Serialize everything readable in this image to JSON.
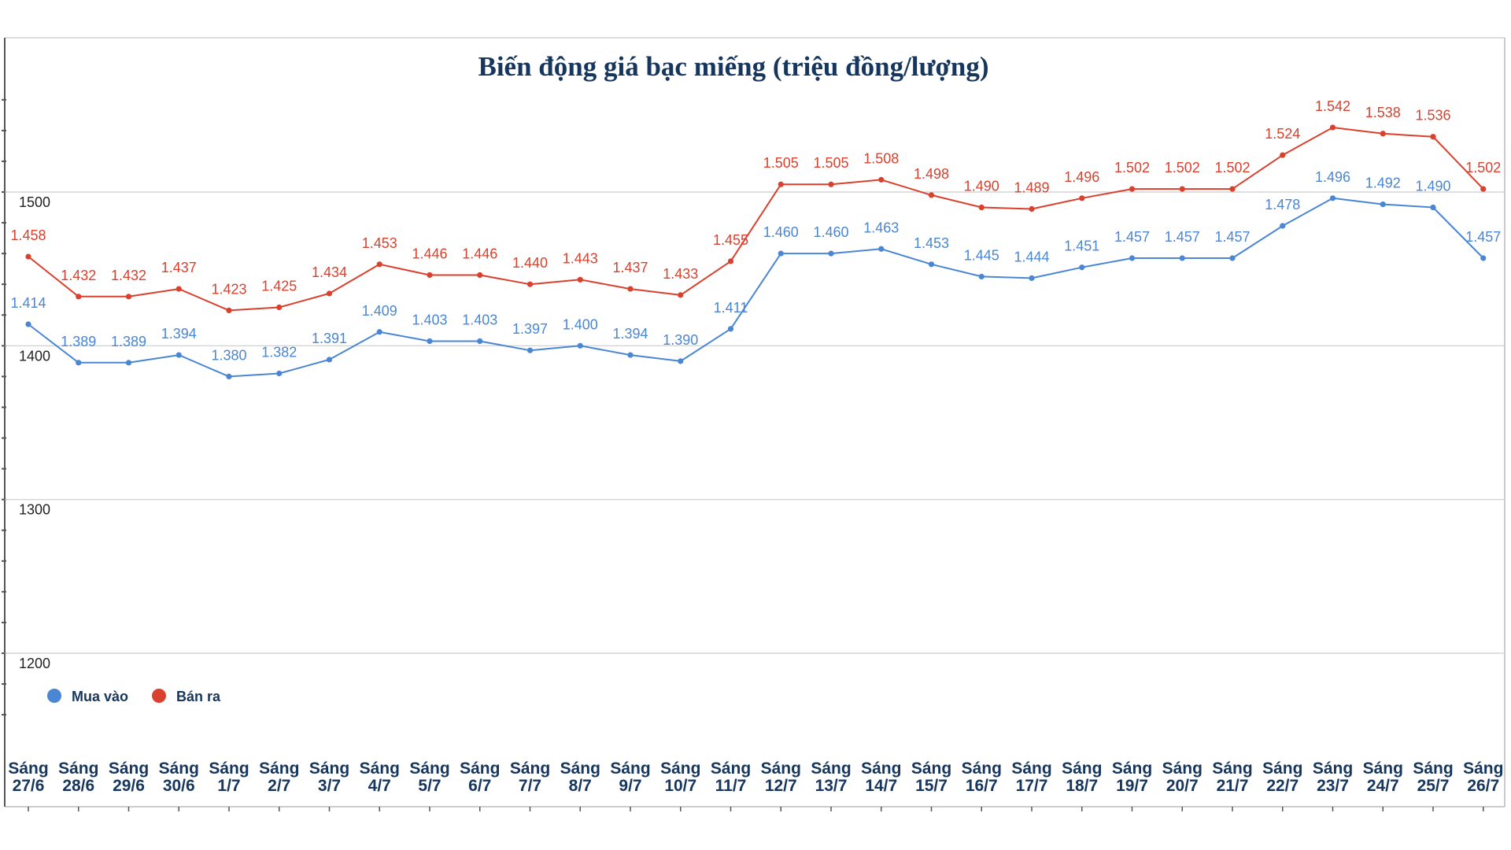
{
  "colors": {
    "buy": "#4a86d4",
    "sell": "#d9412e",
    "title": "#17365d",
    "grid": "#cccccc"
  },
  "chart_data": {
    "type": "line",
    "title": "Biến động giá bạc miếng (triệu đồng/lượng)",
    "xlabel": "",
    "ylabel": "",
    "ylim": [
      1130,
      1560
    ],
    "yticks": [
      1200,
      1300,
      1400,
      1500
    ],
    "grid": true,
    "legend_position": "bottom-left",
    "categories": [
      [
        "Sáng",
        "27/6"
      ],
      [
        "Sáng",
        "28/6"
      ],
      [
        "Sáng",
        "29/6"
      ],
      [
        "Sáng",
        "30/6"
      ],
      [
        "Sáng",
        "1/7"
      ],
      [
        "Sáng",
        "2/7"
      ],
      [
        "Sáng",
        "3/7"
      ],
      [
        "Sáng",
        "4/7"
      ],
      [
        "Sáng",
        "5/7"
      ],
      [
        "Sáng",
        "6/7"
      ],
      [
        "Sáng",
        "7/7"
      ],
      [
        "Sáng",
        "8/7"
      ],
      [
        "Sáng",
        "9/7"
      ],
      [
        "Sáng",
        "10/7"
      ],
      [
        "Sáng",
        "11/7"
      ],
      [
        "Sáng",
        "12/7"
      ],
      [
        "Sáng",
        "13/7"
      ],
      [
        "Sáng",
        "14/7"
      ],
      [
        "Sáng",
        "15/7"
      ],
      [
        "Sáng",
        "16/7"
      ],
      [
        "Sáng",
        "17/7"
      ],
      [
        "Sáng",
        "18/7"
      ],
      [
        "Sáng",
        "19/7"
      ],
      [
        "Sáng",
        "20/7"
      ],
      [
        "Sáng",
        "21/7"
      ],
      [
        "Sáng",
        "22/7"
      ],
      [
        "Sáng",
        "23/7"
      ],
      [
        "Sáng",
        "24/7"
      ],
      [
        "Sáng",
        "25/7"
      ],
      [
        "Sáng",
        "26/7"
      ]
    ],
    "series": [
      {
        "name": "Mua vào",
        "color": "#4a86d4",
        "values": [
          1414,
          1389,
          1389,
          1394,
          1380,
          1382,
          1391,
          1409,
          1403,
          1403,
          1397,
          1400,
          1394,
          1390,
          1411,
          1460,
          1460,
          1463,
          1453,
          1445,
          1444,
          1451,
          1457,
          1457,
          1457,
          1478,
          1496,
          1492,
          1490,
          1457
        ],
        "labels": [
          "1.414",
          "1.389",
          "1.389",
          "1.394",
          "1.380",
          "1.382",
          "1.391",
          "1.409",
          "1.403",
          "1.403",
          "1.397",
          "1.400",
          "1.394",
          "1.390",
          "1.411",
          "1.460",
          "1.460",
          "1.463",
          "1.453",
          "1.445",
          "1.444",
          "1.451",
          "1.457",
          "1.457",
          "1.457",
          "1.478",
          "1.496",
          "1.492",
          "1.490",
          "1.457"
        ]
      },
      {
        "name": "Bán ra",
        "color": "#d9412e",
        "values": [
          1458,
          1432,
          1432,
          1437,
          1423,
          1425,
          1434,
          1453,
          1446,
          1446,
          1440,
          1443,
          1437,
          1433,
          1455,
          1505,
          1505,
          1508,
          1498,
          1490,
          1489,
          1496,
          1502,
          1502,
          1502,
          1524,
          1542,
          1538,
          1536,
          1502
        ],
        "labels": [
          "1.458",
          "1.432",
          "1.432",
          "1.437",
          "1.423",
          "1.425",
          "1.434",
          "1.453",
          "1.446",
          "1.446",
          "1.440",
          "1.443",
          "1.437",
          "1.433",
          "1.455",
          "1.505",
          "1.505",
          "1.508",
          "1.498",
          "1.490",
          "1.489",
          "1.496",
          "1.502",
          "1.502",
          "1.502",
          "1.524",
          "1.542",
          "1.538",
          "1.536",
          "1.502"
        ]
      }
    ]
  }
}
